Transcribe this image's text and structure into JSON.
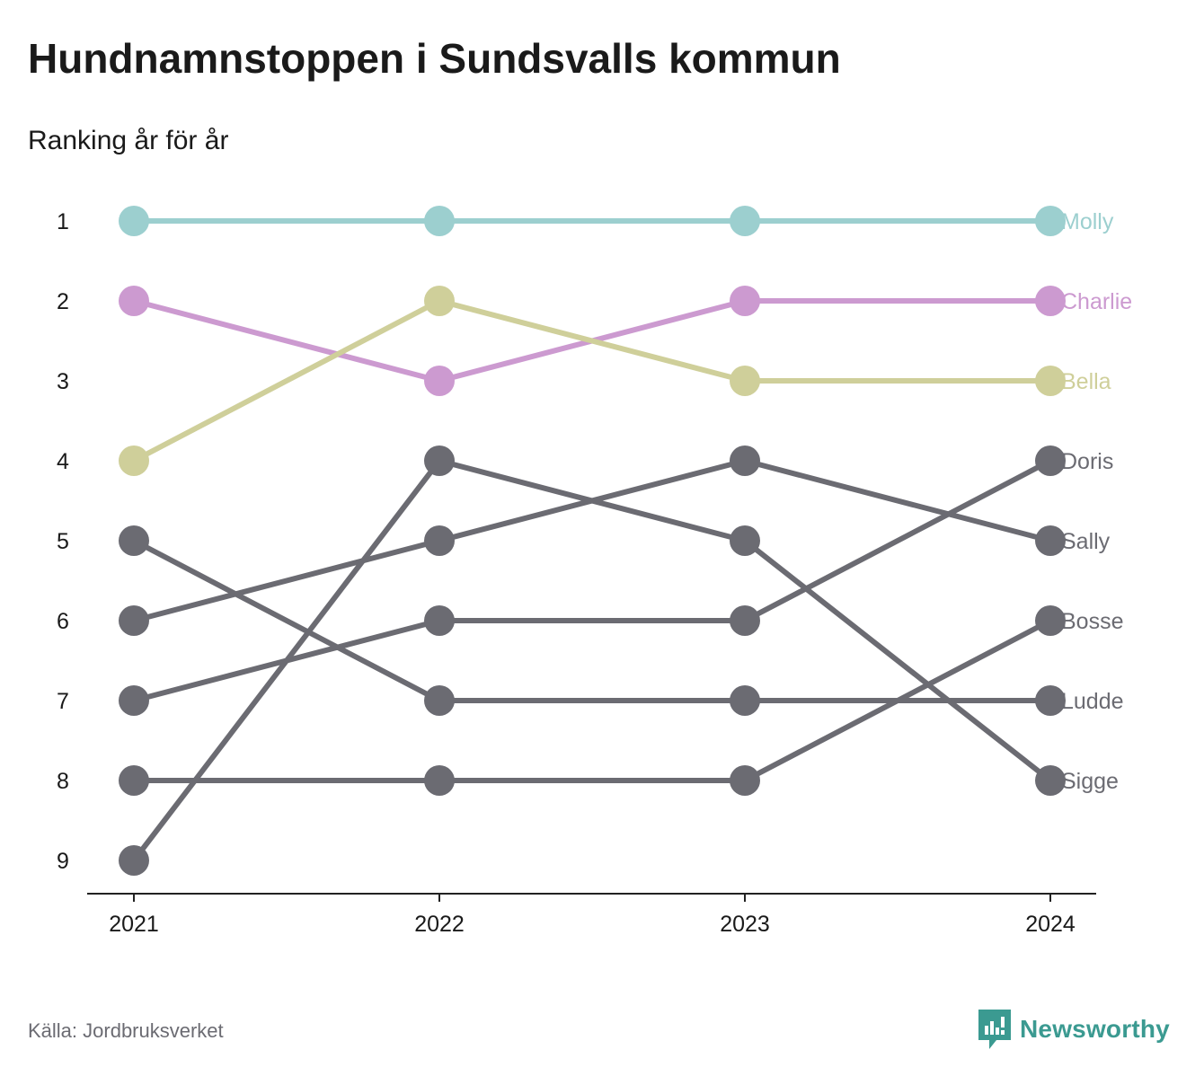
{
  "title": "Hundnamnstoppen i Sundsvalls kommun",
  "subtitle": "Ranking år för år",
  "source": "Källa: Jordbruksverket",
  "brand": "Newsworthy",
  "colors": {
    "brand": "#3b9a91",
    "muted": "#6b6b72"
  },
  "chart_data": {
    "type": "line",
    "title": "Hundnamnstoppen i Sundsvalls kommun",
    "subtitle": "Ranking år för år",
    "xlabel": "",
    "ylabel": "",
    "x": [
      "2021",
      "2022",
      "2023",
      "2024"
    ],
    "y_ticks": [
      1,
      2,
      3,
      4,
      5,
      6,
      7,
      8,
      9
    ],
    "ylim": [
      1,
      9
    ],
    "y_reversed": true,
    "grid": false,
    "legend": "direct labels at right end of lines",
    "series": [
      {
        "name": "Molly",
        "values": [
          1,
          1,
          1,
          1
        ],
        "color": "#9ccfcf"
      },
      {
        "name": "Charlie",
        "values": [
          2,
          3,
          2,
          2
        ],
        "color": "#cc9ad0"
      },
      {
        "name": "Bella",
        "values": [
          4,
          2,
          3,
          3
        ],
        "color": "#cfcf9a"
      },
      {
        "name": "Doris",
        "values": [
          7,
          6,
          6,
          4
        ],
        "color": "#6b6b72"
      },
      {
        "name": "Sally",
        "values": [
          6,
          5,
          4,
          5
        ],
        "color": "#6b6b72"
      },
      {
        "name": "Bosse",
        "values": [
          8,
          8,
          8,
          6
        ],
        "color": "#6b6b72"
      },
      {
        "name": "Ludde",
        "values": [
          5,
          7,
          7,
          7
        ],
        "color": "#6b6b72"
      },
      {
        "name": "Sigge",
        "values": [
          9,
          4,
          5,
          8
        ],
        "color": "#6b6b72"
      }
    ]
  }
}
